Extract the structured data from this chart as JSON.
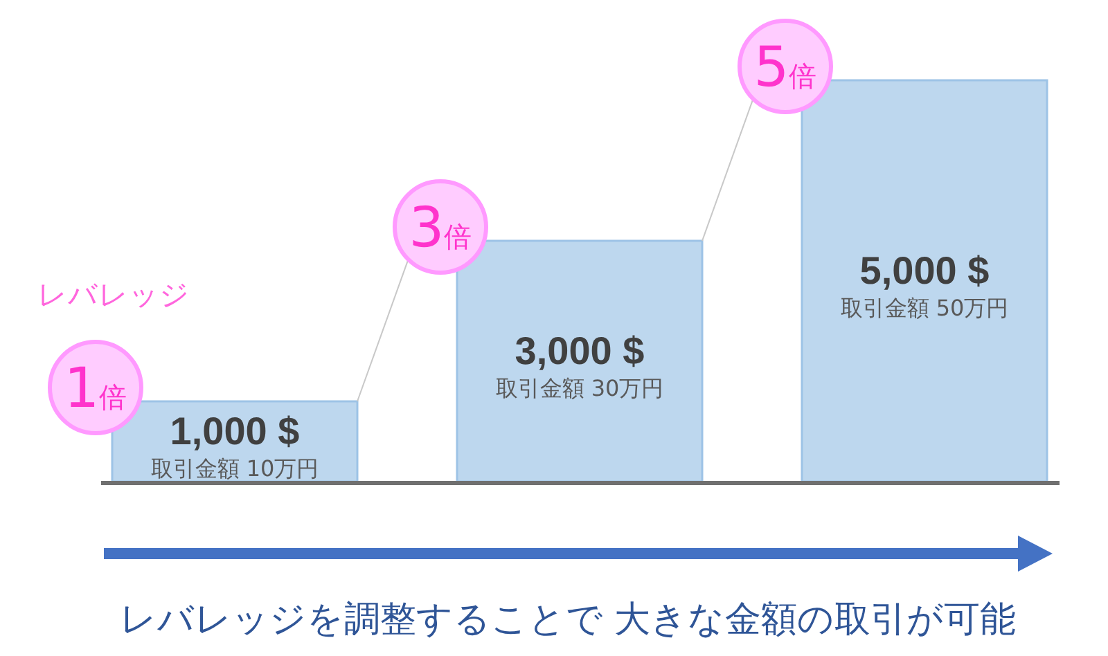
{
  "chart_data": {
    "type": "bar",
    "categories": [
      "1倍",
      "3倍",
      "5倍"
    ],
    "xlabel": "レバレッジ",
    "values": [
      1000,
      3000,
      5000
    ],
    "value_labels": [
      "1,000 $",
      "3,000 $",
      "5,000 $"
    ],
    "color": "#bdd7ee",
    "annotations": [
      "取引金額 10万円",
      "取引金額 30万円",
      "取引金額 50万円",
      "レバレッジを調整することで 大きな金額の取引が可能"
    ]
  }
}
